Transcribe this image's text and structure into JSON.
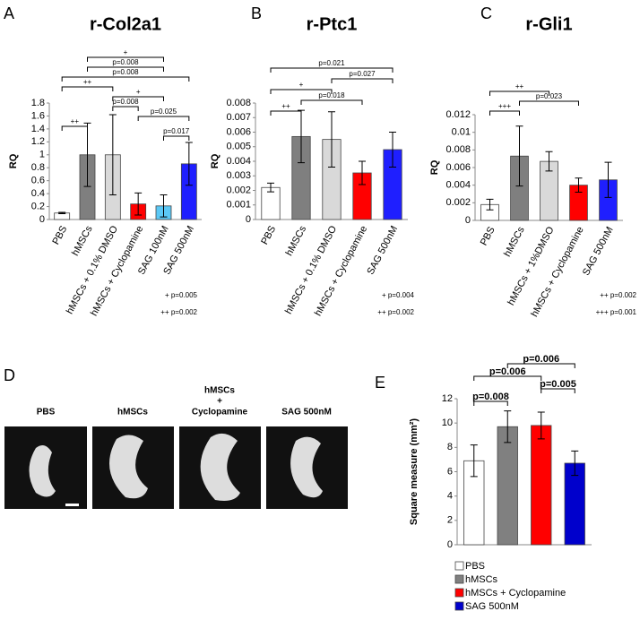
{
  "panel_labels": [
    "A",
    "B",
    "C",
    "D",
    "E"
  ],
  "photo_panel": {
    "labels": [
      [
        "PBS"
      ],
      [
        "hMSCs"
      ],
      [
        "hMSCs",
        "+",
        "Cyclopamine"
      ],
      [
        "SAG 500nM"
      ]
    ]
  },
  "chart_data": [
    {
      "type": "bar",
      "title": "r-Col2a1",
      "y_label": "RQ",
      "categories": [
        "PBS",
        "hMSCs",
        "hMSCs + 0.1% DMSO",
        "hMSCs + Cyclopamine",
        "SAG 100nM",
        "SAG 500nM"
      ],
      "values": [
        0.1,
        1.0,
        1.0,
        0.24,
        0.21,
        0.86
      ],
      "errors": [
        0.01,
        0.49,
        0.62,
        0.17,
        0.17,
        0.33
      ],
      "colors": [
        "#ffffff",
        "#7f7f7f",
        "#d9d9d9",
        "#ff0000",
        "#5bc8f5",
        "#1f1fff"
      ],
      "ylim": [
        0,
        1.8
      ],
      "yticks": [
        0,
        0.2,
        0.4,
        0.6,
        0.8,
        1,
        1.2,
        1.4,
        1.6,
        1.8
      ],
      "brackets": [
        {
          "from": 4,
          "to": 5,
          "label": "p=0.017"
        },
        {
          "from": 0,
          "to": 1,
          "label": "++"
        },
        {
          "from": 3,
          "to": 5,
          "label": "p=0.025"
        },
        {
          "from": 2,
          "to": 3,
          "label": "p=0.008"
        },
        {
          "from": 2,
          "to": 4,
          "label": "+"
        },
        {
          "from": 0,
          "to": 2,
          "label": "++"
        },
        {
          "from": 0,
          "to": 5,
          "label": "p=0.008"
        },
        {
          "from": 1,
          "to": 4,
          "label": "p=0.008"
        },
        {
          "from": 1,
          "to": 4,
          "label": "+"
        }
      ],
      "footnotes": [
        "+  p=0.005",
        "++  p=0.002"
      ]
    },
    {
      "type": "bar",
      "title": "r-Ptc1",
      "y_label": "RQ",
      "categories": [
        "PBS",
        "hMSCs",
        "hMSCs + 0.1% DMSO",
        "hMSCs + Cyclopamine",
        "SAG 500nM"
      ],
      "values": [
        0.0022,
        0.0057,
        0.0055,
        0.0032,
        0.0048
      ],
      "errors": [
        0.0003,
        0.0018,
        0.0019,
        0.0008,
        0.0012
      ],
      "colors": [
        "#ffffff",
        "#7f7f7f",
        "#d9d9d9",
        "#ff0000",
        "#1f1fff"
      ],
      "ylim": [
        0,
        0.008
      ],
      "yticks": [
        0,
        0.001,
        0.002,
        0.003,
        0.004,
        0.005,
        0.006,
        0.007,
        0.008
      ],
      "brackets": [
        {
          "from": 0,
          "to": 1,
          "label": "++"
        },
        {
          "from": 1,
          "to": 3,
          "label": "p=0.018"
        },
        {
          "from": 0,
          "to": 2,
          "label": "+"
        },
        {
          "from": 2,
          "to": 4,
          "label": "p=0.027"
        },
        {
          "from": 0,
          "to": 4,
          "label": "p=0.021"
        }
      ],
      "footnotes": [
        "+  p=0.004",
        "++ p=0.002"
      ]
    },
    {
      "type": "bar",
      "title": "r-Gli1",
      "y_label": "RQ",
      "categories": [
        "PBS",
        "hMSCs",
        "hMSCs + 1%DMSO",
        "hMSCs + Cyclopamine",
        "SAG 500nM"
      ],
      "values": [
        0.0018,
        0.0073,
        0.0067,
        0.004,
        0.0046
      ],
      "errors": [
        0.0006,
        0.0034,
        0.0011,
        0.0008,
        0.002
      ],
      "colors": [
        "#ffffff",
        "#7f7f7f",
        "#d9d9d9",
        "#ff0000",
        "#1f1fff"
      ],
      "ylim": [
        0,
        0.012
      ],
      "yticks": [
        0,
        0.002,
        0.004,
        0.006,
        0.008,
        0.01,
        0.012
      ],
      "brackets": [
        {
          "from": 0,
          "to": 1,
          "label": "+++"
        },
        {
          "from": 1,
          "to": 3,
          "label": "p=0.023"
        },
        {
          "from": 0,
          "to": 2,
          "label": "++"
        }
      ],
      "footnotes": [
        "++ p=0.002",
        "+++ p=0.001"
      ]
    },
    {
      "type": "bar",
      "y_label": "Square measure (mm²)",
      "series": [
        {
          "name": "PBS",
          "color": "#ffffff",
          "values": [
            6.9
          ],
          "errors": [
            1.3
          ]
        },
        {
          "name": "hMSCs",
          "color": "#808080",
          "values": [
            9.7
          ],
          "errors": [
            1.3
          ]
        },
        {
          "name": "hMSCs + Cyclopamine",
          "color": "#ff0000",
          "values": [
            9.8
          ],
          "errors": [
            1.1
          ]
        },
        {
          "name": "SAG 500nM",
          "color": "#0000cc",
          "values": [
            6.7
          ],
          "errors": [
            1.0
          ]
        }
      ],
      "ylim": [
        0,
        12
      ],
      "yticks": [
        0,
        2,
        4,
        6,
        8,
        10,
        12
      ],
      "brackets": [
        {
          "from": 0,
          "to": 1,
          "label": "p=0.008"
        },
        {
          "from": 2,
          "to": 3,
          "label": "p=0.005"
        },
        {
          "from": 0,
          "to": 2,
          "label": "p=0.006"
        },
        {
          "from": 1,
          "to": 3,
          "label": "p=0.006"
        }
      ]
    }
  ]
}
